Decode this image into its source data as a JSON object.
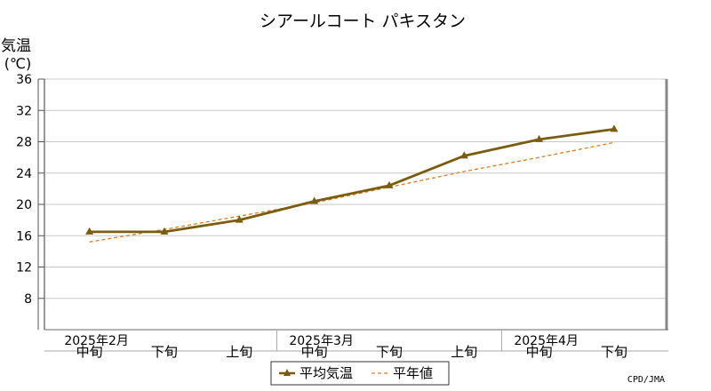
{
  "chart_data": {
    "type": "line",
    "title": "シアールコート パキスタン",
    "ylabel": "気温",
    "yunit": "(℃)",
    "ylim": [
      4,
      36
    ],
    "yticks": [
      8,
      12,
      16,
      20,
      24,
      28,
      32,
      36
    ],
    "grid": true,
    "categories": [
      "中旬",
      "下旬",
      "上旬",
      "中旬",
      "下旬",
      "上旬",
      "中旬",
      "下旬"
    ],
    "month_labels": [
      {
        "label": "2025年2月",
        "index": 0
      },
      {
        "label": "2025年3月",
        "index": 3
      },
      {
        "label": "2025年4月",
        "index": 6
      }
    ],
    "series": [
      {
        "name": "平均気温",
        "color": "#7a5c0f",
        "style": "solid",
        "marker": "triangle",
        "values": [
          16.5,
          16.5,
          18.0,
          20.4,
          22.4,
          26.2,
          28.3,
          29.6
        ]
      },
      {
        "name": "平年値",
        "color": "#e07b20",
        "style": "dashed",
        "values": [
          15.2,
          16.8,
          18.5,
          20.2,
          22.2,
          24.2,
          26.0,
          27.9
        ]
      }
    ],
    "legend_position": "bottom-center",
    "credit": "CPD/JMA"
  }
}
